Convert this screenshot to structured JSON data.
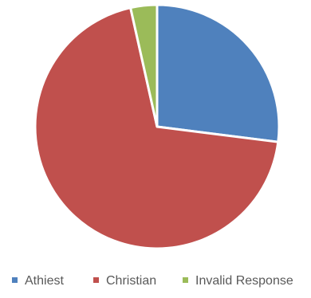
{
  "chart_data": {
    "type": "pie",
    "categories": [
      "Athiest",
      "Christian",
      "Invalid Response"
    ],
    "values": [
      27,
      69.5,
      3.5
    ],
    "colors": [
      "#4F81BD",
      "#C0504D",
      "#9BBB59"
    ],
    "legend_position": "bottom",
    "start_angle": "12 o'clock, clockwise"
  }
}
